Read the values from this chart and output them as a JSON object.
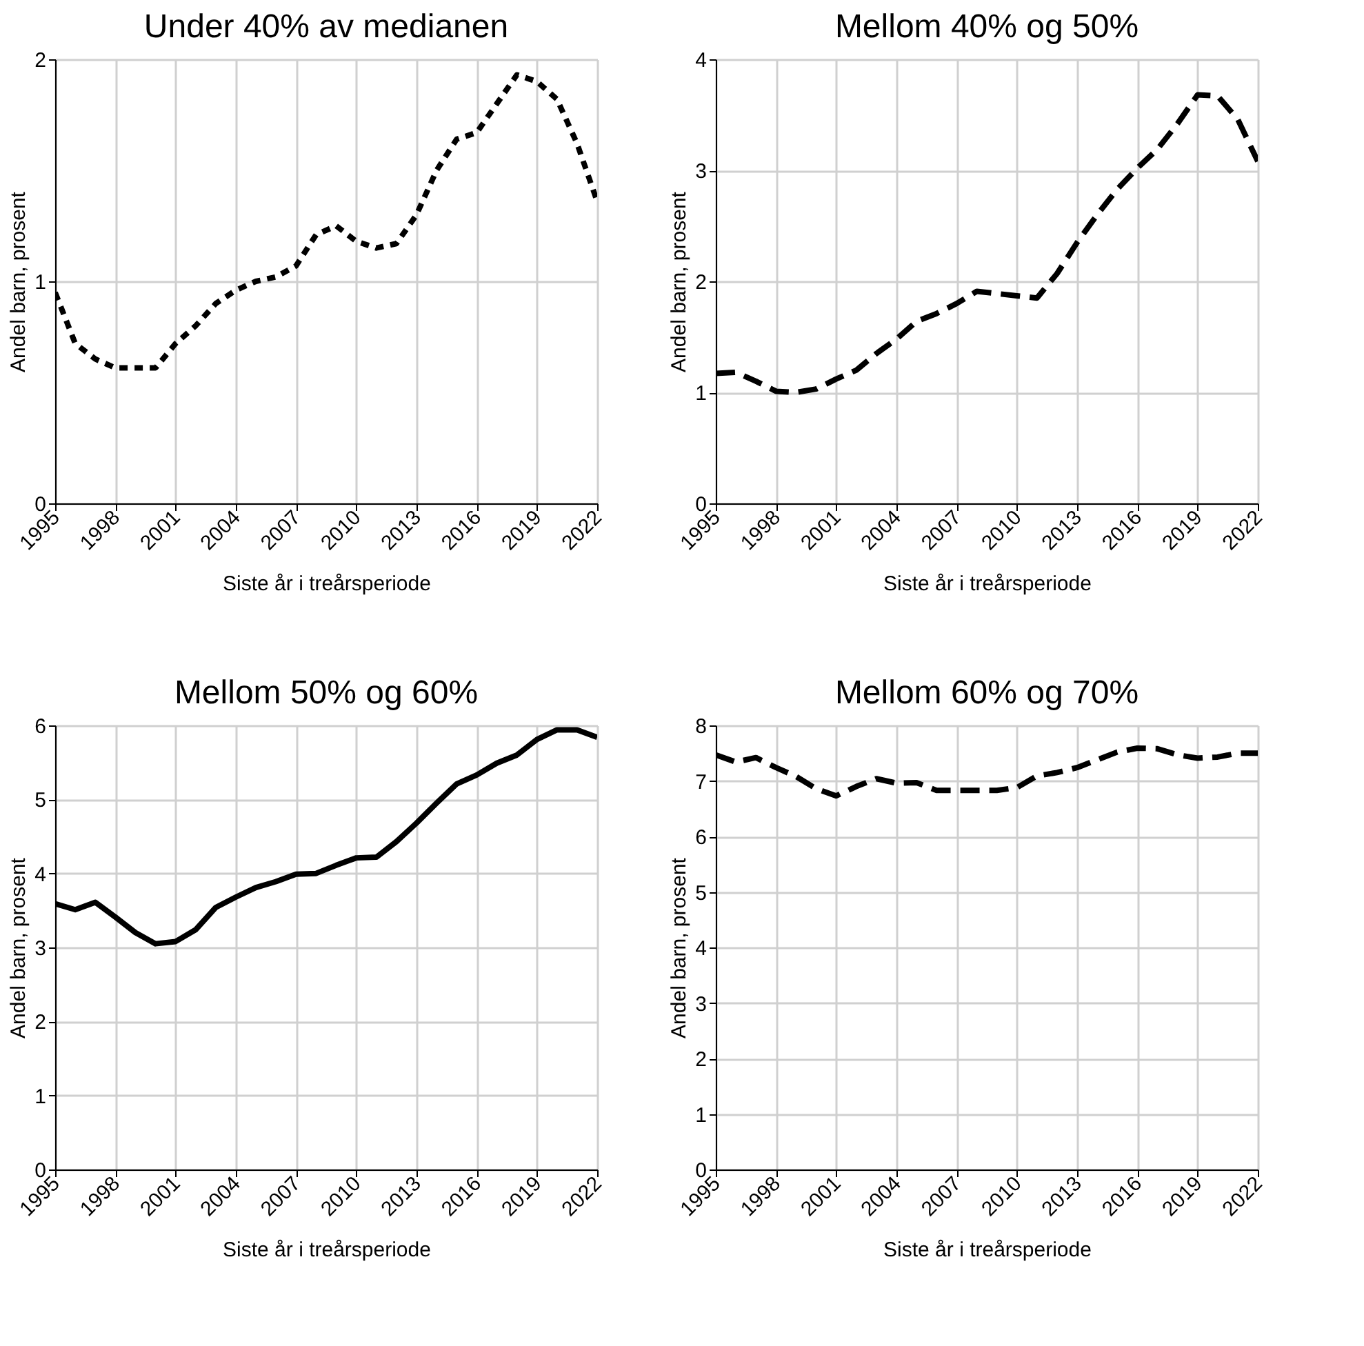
{
  "chart_data": [
    {
      "type": "line",
      "title": "Under 40% av medianen",
      "xlabel": "Siste år i treårsperiode",
      "ylabel": "Andel barn, prosent",
      "line_style": "dotted",
      "grid": true,
      "xlim": [
        1995,
        2022
      ],
      "xticks": [
        1995,
        1998,
        2001,
        2004,
        2007,
        2010,
        2013,
        2016,
        2019,
        2022
      ],
      "ylim": [
        0,
        2
      ],
      "yticks": [
        0,
        1,
        2
      ],
      "x": [
        1995,
        1996,
        1997,
        1998,
        1999,
        2000,
        2001,
        2002,
        2003,
        2004,
        2005,
        2006,
        2007,
        2008,
        2009,
        2010,
        2011,
        2012,
        2013,
        2014,
        2015,
        2016,
        2017,
        2018,
        2019,
        2020,
        2021,
        2022
      ],
      "series": [
        {
          "color": "#000000",
          "values": [
            0.95,
            0.72,
            0.65,
            0.61,
            0.61,
            0.61,
            0.72,
            0.8,
            0.9,
            0.96,
            1.0,
            1.02,
            1.07,
            1.21,
            1.25,
            1.18,
            1.15,
            1.17,
            1.3,
            1.5,
            1.64,
            1.67,
            1.8,
            1.93,
            1.9,
            1.82,
            1.62,
            1.36
          ]
        }
      ]
    },
    {
      "type": "line",
      "title": "Mellom 40% og 50%",
      "xlabel": "Siste år i treårsperiode",
      "ylabel": "Andel barn, prosent",
      "line_style": "dashed",
      "grid": true,
      "xlim": [
        1995,
        2022
      ],
      "xticks": [
        1995,
        1998,
        2001,
        2004,
        2007,
        2010,
        2013,
        2016,
        2019,
        2022
      ],
      "ylim": [
        0,
        4
      ],
      "yticks": [
        0,
        1,
        2,
        3,
        4
      ],
      "x": [
        1995,
        1996,
        1997,
        1998,
        1999,
        2000,
        2001,
        2002,
        2003,
        2004,
        2005,
        2006,
        2007,
        2008,
        2009,
        2010,
        2011,
        2012,
        2013,
        2014,
        2015,
        2016,
        2017,
        2018,
        2019,
        2020,
        2021,
        2022
      ],
      "series": [
        {
          "color": "#000000",
          "values": [
            1.17,
            1.18,
            1.1,
            1.01,
            1.0,
            1.03,
            1.12,
            1.2,
            1.35,
            1.48,
            1.64,
            1.71,
            1.8,
            1.91,
            1.89,
            1.87,
            1.85,
            2.07,
            2.35,
            2.6,
            2.83,
            3.02,
            3.19,
            3.42,
            3.68,
            3.67,
            3.46,
            3.08
          ]
        }
      ]
    },
    {
      "type": "line",
      "title": "Mellom 50% og 60%",
      "xlabel": "Siste år i treårsperiode",
      "ylabel": "Andel barn, prosent",
      "line_style": "solid",
      "grid": true,
      "xlim": [
        1995,
        2022
      ],
      "xticks": [
        1995,
        1998,
        2001,
        2004,
        2007,
        2010,
        2013,
        2016,
        2019,
        2022
      ],
      "ylim": [
        0,
        6
      ],
      "yticks": [
        0,
        1,
        2,
        3,
        4,
        5,
        6
      ],
      "x": [
        1995,
        1996,
        1997,
        1998,
        1999,
        2000,
        2001,
        2002,
        2003,
        2004,
        2005,
        2006,
        2007,
        2008,
        2009,
        2010,
        2011,
        2012,
        2013,
        2014,
        2015,
        2016,
        2017,
        2018,
        2019,
        2020,
        2021,
        2022
      ],
      "series": [
        {
          "color": "#000000",
          "values": [
            3.59,
            3.51,
            3.61,
            3.41,
            3.2,
            3.05,
            3.08,
            3.24,
            3.54,
            3.68,
            3.81,
            3.89,
            3.99,
            4.0,
            4.11,
            4.21,
            4.22,
            4.43,
            4.68,
            4.95,
            5.21,
            5.33,
            5.49,
            5.6,
            5.81,
            5.94,
            5.94,
            5.84
          ]
        }
      ]
    },
    {
      "type": "line",
      "title": "Mellom 60% og 70%",
      "xlabel": "Siste år i treårsperiode",
      "ylabel": "Andel barn, prosent",
      "line_style": "dashed",
      "grid": true,
      "xlim": [
        1995,
        2022
      ],
      "xticks": [
        1995,
        1998,
        2001,
        2004,
        2007,
        2010,
        2013,
        2016,
        2019,
        2022
      ],
      "ylim": [
        0,
        8
      ],
      "yticks": [
        0,
        1,
        2,
        3,
        4,
        5,
        6,
        7,
        8
      ],
      "x": [
        1995,
        1996,
        1997,
        1998,
        1999,
        2000,
        2001,
        2002,
        2003,
        2004,
        2005,
        2006,
        2007,
        2008,
        2009,
        2010,
        2011,
        2012,
        2013,
        2014,
        2015,
        2016,
        2017,
        2018,
        2019,
        2020,
        2021,
        2022
      ],
      "series": [
        {
          "color": "#000000",
          "values": [
            7.47,
            7.34,
            7.42,
            7.24,
            7.08,
            6.86,
            6.73,
            6.9,
            7.04,
            6.96,
            6.97,
            6.83,
            6.83,
            6.83,
            6.83,
            6.88,
            7.09,
            7.15,
            7.24,
            7.38,
            7.52,
            7.59,
            7.58,
            7.47,
            7.41,
            7.43,
            7.5,
            7.5
          ]
        }
      ]
    }
  ]
}
